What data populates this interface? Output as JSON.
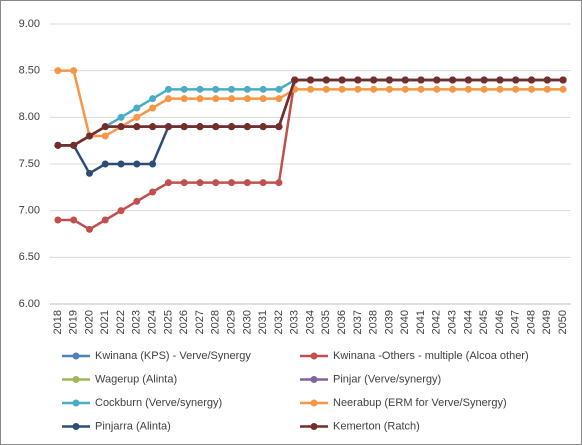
{
  "chart_data": {
    "type": "line",
    "categories": [
      "2018",
      "2019",
      "2020",
      "2021",
      "2022",
      "2023",
      "2024",
      "2025",
      "2026",
      "2027",
      "2028",
      "2029",
      "2030",
      "2031",
      "2032",
      "2033",
      "2034",
      "2035",
      "2036",
      "2037",
      "2038",
      "2039",
      "2040",
      "2041",
      "2042",
      "2043",
      "2044",
      "2045",
      "2046",
      "2047",
      "2048",
      "2049",
      "2050"
    ],
    "ylim": [
      6,
      9
    ],
    "yticks": [
      {
        "value": 6,
        "label": "6.00"
      },
      {
        "value": 6.5,
        "label": "6.50"
      },
      {
        "value": 7,
        "label": "7.00"
      },
      {
        "value": 7.5,
        "label": "7.50"
      },
      {
        "value": 8,
        "label": "8.00"
      },
      {
        "value": 8.5,
        "label": "8.50"
      },
      {
        "value": 9,
        "label": "9.00"
      }
    ],
    "grid": true,
    "legend": "bottom",
    "series": [
      {
        "name": "Kwinana (KPS) - Verve/Synergy",
        "color": "#4f81bd",
        "values": [
          7.7,
          7.7,
          7.8,
          7.9,
          7.9,
          7.9,
          7.9,
          7.9,
          7.9,
          7.9,
          7.9,
          7.9,
          7.9,
          7.9,
          7.9,
          8.4,
          8.4,
          8.4,
          8.4,
          8.4,
          8.4,
          8.4,
          8.4,
          8.4,
          8.4,
          8.4,
          8.4,
          8.4,
          8.4,
          8.4,
          8.4,
          8.4,
          8.4
        ]
      },
      {
        "name": "Kwinana -Others - multiple (Alcoa other)",
        "color": "#c0504d",
        "values": [
          6.9,
          6.9,
          6.8,
          6.9,
          7.0,
          7.1,
          7.2,
          7.3,
          7.3,
          7.3,
          7.3,
          7.3,
          7.3,
          7.3,
          7.3,
          8.4,
          8.4,
          8.4,
          8.4,
          8.4,
          8.4,
          8.4,
          8.4,
          8.4,
          8.4,
          8.4,
          8.4,
          8.4,
          8.4,
          8.4,
          8.4,
          8.4,
          8.4
        ]
      },
      {
        "name": "Wagerup (Alinta)",
        "color": "#9bbb59",
        "values": [
          7.7,
          7.7,
          7.8,
          7.9,
          7.9,
          7.9,
          7.9,
          7.9,
          7.9,
          7.9,
          7.9,
          7.9,
          7.9,
          7.9,
          7.9,
          8.4,
          8.4,
          8.4,
          8.4,
          8.4,
          8.4,
          8.4,
          8.4,
          8.4,
          8.4,
          8.4,
          8.4,
          8.4,
          8.4,
          8.4,
          8.4,
          8.4,
          8.4
        ]
      },
      {
        "name": "Pinjar (Verve/synergy)",
        "color": "#8064a2",
        "values": [
          7.7,
          7.7,
          7.8,
          7.9,
          7.9,
          7.9,
          7.9,
          7.9,
          7.9,
          7.9,
          7.9,
          7.9,
          7.9,
          7.9,
          7.9,
          8.4,
          8.4,
          8.4,
          8.4,
          8.4,
          8.4,
          8.4,
          8.4,
          8.4,
          8.4,
          8.4,
          8.4,
          8.4,
          8.4,
          8.4,
          8.4,
          8.4,
          8.4
        ]
      },
      {
        "name": "Cockburn (Verve/synergy)",
        "color": "#4bacc6",
        "values": [
          7.7,
          7.7,
          7.8,
          7.9,
          8.0,
          8.1,
          8.2,
          8.3,
          8.3,
          8.3,
          8.3,
          8.3,
          8.3,
          8.3,
          8.3,
          8.4,
          8.4,
          8.4,
          8.4,
          8.4,
          8.4,
          8.4,
          8.4,
          8.4,
          8.4,
          8.4,
          8.4,
          8.4,
          8.4,
          8.4,
          8.4,
          8.4,
          8.4
        ]
      },
      {
        "name": "Neerabup (ERM for Verve/Synergy)",
        "color": "#f79646",
        "values": [
          8.5,
          8.5,
          7.8,
          7.8,
          7.9,
          8.0,
          8.1,
          8.2,
          8.2,
          8.2,
          8.2,
          8.2,
          8.2,
          8.2,
          8.2,
          8.3,
          8.3,
          8.3,
          8.3,
          8.3,
          8.3,
          8.3,
          8.3,
          8.3,
          8.3,
          8.3,
          8.3,
          8.3,
          8.3,
          8.3,
          8.3,
          8.3,
          8.3
        ]
      },
      {
        "name": "Pinjarra (Alinta)",
        "color": "#2c4d75",
        "values": [
          7.7,
          7.7,
          7.4,
          7.5,
          7.5,
          7.5,
          7.5,
          7.9,
          7.9,
          7.9,
          7.9,
          7.9,
          7.9,
          7.9,
          7.9,
          8.4,
          8.4,
          8.4,
          8.4,
          8.4,
          8.4,
          8.4,
          8.4,
          8.4,
          8.4,
          8.4,
          8.4,
          8.4,
          8.4,
          8.4,
          8.4,
          8.4,
          8.4
        ]
      },
      {
        "name": "Kemerton (Ratch)",
        "color": "#772c2a",
        "values": [
          7.7,
          7.7,
          7.8,
          7.9,
          7.9,
          7.9,
          7.9,
          7.9,
          7.9,
          7.9,
          7.9,
          7.9,
          7.9,
          7.9,
          7.9,
          8.4,
          8.4,
          8.4,
          8.4,
          8.4,
          8.4,
          8.4,
          8.4,
          8.4,
          8.4,
          8.4,
          8.4,
          8.4,
          8.4,
          8.4,
          8.4,
          8.4,
          8.4
        ]
      }
    ]
  }
}
